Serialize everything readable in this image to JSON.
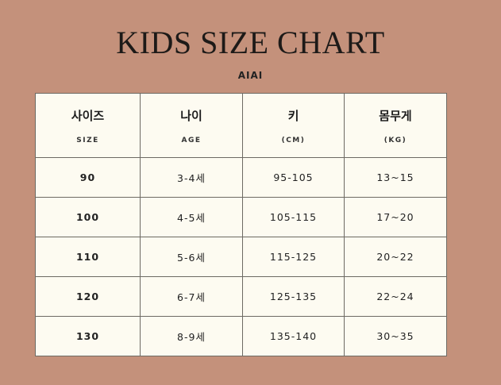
{
  "title": "KIDS SIZE CHART",
  "brand": "AIAI",
  "colors": {
    "background": "#c4917b",
    "table": "#fdfbf1"
  },
  "headers": [
    {
      "ko": "사이즈",
      "en": "SIZE"
    },
    {
      "ko": "나이",
      "en": "AGE"
    },
    {
      "ko": "키",
      "en": "(CM)"
    },
    {
      "ko": "몸무게",
      "en": "(KG)"
    }
  ],
  "rows": [
    [
      "90",
      "3-4세",
      "95-105",
      "13~15"
    ],
    [
      "100",
      "4-5세",
      "105-115",
      "17~20"
    ],
    [
      "110",
      "5-6세",
      "115-125",
      "20~22"
    ],
    [
      "120",
      "6-7세",
      "125-135",
      "22~24"
    ],
    [
      "130",
      "8-9세",
      "135-140",
      "30~35"
    ]
  ]
}
